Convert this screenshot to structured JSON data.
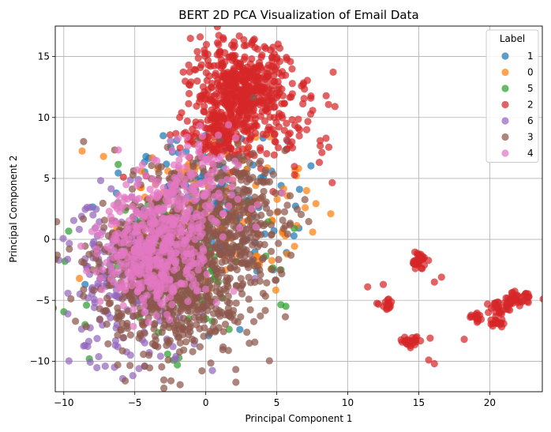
{
  "chart_data": {
    "type": "scatter",
    "title": "BERT 2D PCA Visualization of Email Data",
    "xlabel": "Principal Component 1",
    "ylabel": "Principal Component 2",
    "xlim": [
      -10.6,
      23.7
    ],
    "ylim": [
      -12.5,
      17.5
    ],
    "x_ticks": [
      -10,
      -5,
      0,
      5,
      10,
      15,
      20
    ],
    "y_ticks": [
      -10,
      -5,
      0,
      5,
      10,
      15
    ],
    "grid": true,
    "legend": {
      "title": "Label",
      "placement": "top-right"
    },
    "series": [
      {
        "name": "1",
        "color": "#1f77b4",
        "clusters": [
          {
            "cx": 0.5,
            "cy": 3.0,
            "sx": 2.6,
            "sy": 2.6,
            "n": 140
          }
        ],
        "points": [
          [
            2.4,
            -7.4
          ],
          [
            -6.3,
            3.8
          ],
          [
            -3.0,
            8.5
          ],
          [
            6.6,
            4.1
          ],
          [
            4.8,
            0.7
          ],
          [
            0.2,
            -7.9
          ],
          [
            3.6,
            -2.6
          ],
          [
            -8.5,
            -3.7
          ]
        ]
      },
      {
        "name": "0",
        "color": "#ff7f0e",
        "clusters": [
          {
            "cx": 0.0,
            "cy": 2.0,
            "sx": 3.2,
            "sy": 3.2,
            "n": 170
          }
        ],
        "points": [
          [
            8.8,
            2.1
          ],
          [
            -7.2,
            6.8
          ],
          [
            7.0,
            2.6
          ],
          [
            -8.9,
            -3.2
          ],
          [
            7.1,
            4.0
          ],
          [
            5.6,
            0.3
          ],
          [
            -2.0,
            -4.2
          ]
        ]
      },
      {
        "name": "5",
        "color": "#2ca02c",
        "clusters": [
          {
            "cx": -2.5,
            "cy": -2.0,
            "sx": 3.0,
            "sy": 3.0,
            "n": 120
          }
        ],
        "points": [
          [
            -8.2,
            -9.8
          ],
          [
            -2.0,
            -10.3
          ],
          [
            5.3,
            -2.5
          ],
          [
            -8.4,
            -5.4
          ],
          [
            -8.5,
            -7.0
          ],
          [
            -1.2,
            -6.5
          ]
        ]
      },
      {
        "name": "2",
        "color": "#d62728",
        "clusters": [
          {
            "cx": 2.5,
            "cy": 12.2,
            "sx": 1.7,
            "sy": 2.0,
            "n": 520
          },
          {
            "cx": 1.0,
            "cy": 8.5,
            "sx": 1.3,
            "sy": 1.2,
            "n": 120
          },
          {
            "cx": 6.0,
            "cy": 9.5,
            "sx": 1.6,
            "sy": 2.0,
            "n": 60
          },
          {
            "cx": 15.0,
            "cy": -1.7,
            "sx": 0.25,
            "sy": 0.35,
            "n": 35
          },
          {
            "cx": 14.4,
            "cy": -8.4,
            "sx": 0.35,
            "sy": 0.2,
            "n": 30
          },
          {
            "cx": 21.8,
            "cy": -5.0,
            "sx": 0.55,
            "sy": 0.3,
            "n": 45
          },
          {
            "cx": 20.6,
            "cy": -5.5,
            "sx": 0.3,
            "sy": 0.3,
            "n": 20
          },
          {
            "cx": 20.5,
            "cy": -6.9,
            "sx": 0.3,
            "sy": 0.2,
            "n": 20
          },
          {
            "cx": 19.0,
            "cy": -6.4,
            "sx": 0.3,
            "sy": 0.2,
            "n": 15
          },
          {
            "cx": 12.8,
            "cy": -5.4,
            "sx": 0.25,
            "sy": 0.2,
            "n": 15
          }
        ],
        "points": [
          [
            12.5,
            -3.7
          ],
          [
            11.4,
            -3.9
          ],
          [
            16.1,
            -3.5
          ],
          [
            16.6,
            -3.1
          ],
          [
            15.8,
            -8.1
          ],
          [
            15.7,
            -9.9
          ],
          [
            16.1,
            -10.2
          ],
          [
            18.2,
            -8.2
          ],
          [
            19.9,
            -6.0
          ],
          [
            21.4,
            -5.8
          ],
          [
            9.1,
            10.9
          ],
          [
            -1.2,
            14.3
          ],
          [
            -0.6,
            15.4
          ],
          [
            -4.2,
            5.2
          ],
          [
            -5.8,
            5.1
          ]
        ]
      },
      {
        "name": "6",
        "color": "#9467bd",
        "clusters": [
          {
            "cx": -5.5,
            "cy": -3.5,
            "sx": 2.5,
            "sy": 3.5,
            "n": 230
          }
        ],
        "points": [
          [
            -4.7,
            -10.6
          ],
          [
            -4.3,
            -10.4
          ],
          [
            -8.5,
            -8.7
          ],
          [
            -2.1,
            -9.6
          ],
          [
            -5.3,
            -9.5
          ]
        ]
      },
      {
        "name": "3",
        "color": "#8c564b",
        "clusters": [
          {
            "cx": -2.0,
            "cy": -2.5,
            "sx": 2.8,
            "sy": 3.3,
            "n": 950
          },
          {
            "cx": 1.5,
            "cy": 2.5,
            "sx": 2.0,
            "sy": 2.2,
            "n": 260
          }
        ],
        "points": [
          [
            -4.0,
            -9.5
          ],
          [
            -6.2,
            -10.3
          ],
          [
            5.6,
            1.1
          ],
          [
            6.0,
            -1.3
          ],
          [
            1.0,
            -6.3
          ],
          [
            -1.8,
            -8.5
          ]
        ]
      },
      {
        "name": "4",
        "color": "#e377c2",
        "clusters": [
          {
            "cx": -3.5,
            "cy": -1.0,
            "sx": 1.8,
            "sy": 2.4,
            "n": 420
          },
          {
            "cx": -1.5,
            "cy": 3.5,
            "sx": 1.8,
            "sy": 2.4,
            "n": 160
          }
        ],
        "points": [
          [
            1.6,
            9.4
          ],
          [
            -6.8,
            2.3
          ],
          [
            -7.7,
            -0.8
          ],
          [
            5.4,
            3.8
          ]
        ]
      }
    ]
  }
}
